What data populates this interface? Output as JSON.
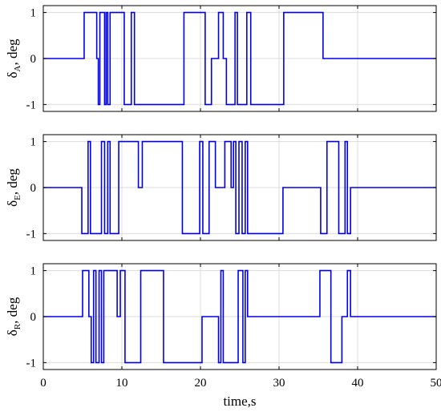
{
  "chart_data": [
    {
      "type": "line",
      "ylabel": {
        "symbol": "δ",
        "sub": "A",
        "unit": ", deg"
      },
      "xlim": [
        0,
        50
      ],
      "ylim": [
        -1.15,
        1.15
      ],
      "yticks": [
        1,
        0,
        -1
      ],
      "ytick_labels": [
        "1",
        "0",
        "-1"
      ],
      "grid": true,
      "color": "#0000ee",
      "series": [
        {
          "x": [
            0,
            5.2,
            5.2,
            6.8,
            6.8,
            7.0,
            7.0,
            7.2,
            7.2,
            7.8,
            7.8,
            8.0,
            8.0,
            8.2,
            8.2,
            8.5,
            8.5,
            10.3,
            10.3,
            11.2,
            11.2,
            11.6,
            11.6,
            17.9,
            17.9,
            20.6,
            20.6,
            21.1,
            21.1,
            21.4,
            21.4,
            22.3,
            22.3,
            22.9,
            22.9,
            23.3,
            23.3,
            24.4,
            24.4,
            24.7,
            24.7,
            25.9,
            25.9,
            26.4,
            26.4,
            30.6,
            30.6,
            35.6,
            35.6,
            50
          ],
          "y": [
            0,
            0,
            1,
            1,
            0,
            0,
            -1,
            -1,
            1,
            1,
            -1,
            -1,
            1,
            1,
            -1,
            -1,
            1,
            1,
            -1,
            -1,
            1,
            1,
            -1,
            -1,
            1,
            1,
            -1,
            -1,
            -1,
            -1,
            0,
            0,
            1,
            1,
            0,
            0,
            -1,
            -1,
            1,
            1,
            -1,
            -1,
            1,
            1,
            -1,
            -1,
            1,
            1,
            0,
            0
          ]
        }
      ]
    },
    {
      "type": "line",
      "ylabel": {
        "symbol": "δ",
        "sub": "E",
        "unit": ", deg"
      },
      "xlim": [
        0,
        50
      ],
      "ylim": [
        -1.15,
        1.15
      ],
      "yticks": [
        1,
        0,
        -1
      ],
      "ytick_labels": [
        "1",
        "0",
        "-1"
      ],
      "grid": true,
      "color": "#0000ee",
      "series": [
        {
          "x": [
            0,
            4.9,
            4.9,
            5.7,
            5.7,
            6.0,
            6.0,
            7.4,
            7.4,
            7.8,
            7.8,
            8.2,
            8.2,
            8.5,
            8.5,
            9.6,
            9.6,
            12.1,
            12.1,
            12.6,
            12.6,
            17.7,
            17.7,
            19.9,
            19.9,
            20.3,
            20.3,
            21.1,
            21.1,
            21.9,
            21.9,
            23.1,
            23.1,
            23.9,
            23.9,
            24.2,
            24.2,
            24.5,
            24.5,
            24.9,
            24.9,
            25.3,
            25.3,
            25.7,
            25.7,
            26.0,
            26.0,
            30.5,
            30.5,
            32.9,
            32.9,
            35.3,
            35.3,
            36.1,
            36.1,
            37.6,
            37.6,
            38.4,
            38.4,
            38.7,
            38.7,
            39.1,
            39.1,
            50
          ],
          "y": [
            0,
            0,
            -1,
            -1,
            1,
            1,
            -1,
            -1,
            1,
            1,
            -1,
            -1,
            1,
            1,
            -1,
            -1,
            1,
            1,
            0,
            0,
            1,
            1,
            -1,
            -1,
            1,
            1,
            -1,
            -1,
            1,
            1,
            0,
            0,
            1,
            1,
            0,
            0,
            1,
            1,
            -1,
            -1,
            1,
            1,
            -1,
            -1,
            1,
            1,
            -1,
            -1,
            0,
            0,
            0,
            0,
            -1,
            -1,
            1,
            1,
            -1,
            -1,
            1,
            1,
            -1,
            -1,
            0,
            0
          ]
        }
      ]
    },
    {
      "type": "line",
      "ylabel": {
        "symbol": "δ",
        "sub": "R",
        "unit": ", deg"
      },
      "xlim": [
        0,
        50
      ],
      "ylim": [
        -1.15,
        1.15
      ],
      "yticks": [
        1,
        0,
        -1
      ],
      "ytick_labels": [
        "1",
        "0",
        "-1"
      ],
      "xticks": [
        0,
        10,
        20,
        30,
        40,
        50
      ],
      "xtick_labels": [
        "0",
        "10",
        "20",
        "30",
        "40",
        "50"
      ],
      "xlabel": "time,s",
      "grid": true,
      "color": "#0000ee",
      "series": [
        {
          "x": [
            0,
            5.0,
            5.0,
            5.8,
            5.8,
            6.1,
            6.1,
            6.4,
            6.4,
            6.7,
            6.7,
            7.1,
            7.1,
            7.4,
            7.4,
            7.7,
            7.7,
            9.4,
            9.4,
            9.8,
            9.8,
            10.4,
            10.4,
            12.4,
            12.4,
            15.3,
            15.3,
            17.8,
            17.8,
            20.2,
            20.2,
            22.3,
            22.3,
            22.6,
            22.6,
            22.9,
            22.9,
            24.8,
            24.8,
            25.4,
            25.4,
            25.7,
            25.7,
            26.0,
            26.0,
            35.2,
            35.2,
            36.6,
            36.6,
            38.0,
            38.0,
            38.7,
            38.7,
            39.1,
            39.1,
            50
          ],
          "y": [
            0,
            0,
            1,
            1,
            0,
            0,
            -1,
            -1,
            1,
            1,
            -1,
            -1,
            1,
            1,
            -1,
            -1,
            1,
            1,
            0,
            0,
            1,
            1,
            -1,
            -1,
            1,
            1,
            -1,
            -1,
            -1,
            -1,
            0,
            0,
            -1,
            -1,
            1,
            1,
            -1,
            -1,
            1,
            1,
            -1,
            -1,
            1,
            1,
            0,
            0,
            1,
            1,
            -1,
            -1,
            0,
            0,
            1,
            1,
            0,
            0
          ]
        }
      ]
    }
  ]
}
